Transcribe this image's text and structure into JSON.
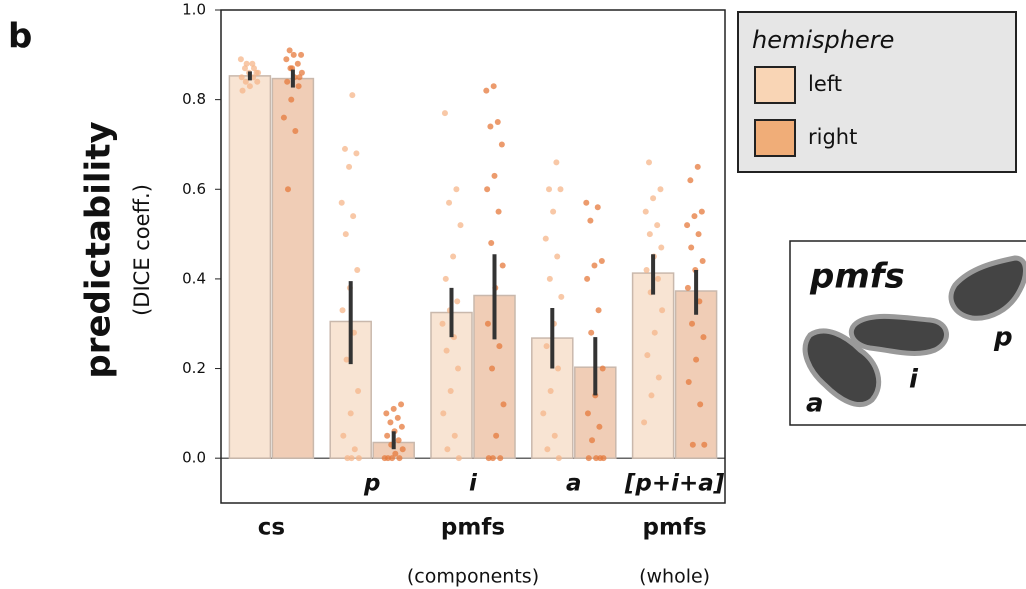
{
  "panel_label": "b",
  "chart_data": {
    "type": "bar",
    "ylabel": "predictability",
    "ylabel_sub": "(DICE coeff.)",
    "categories": [
      null,
      "p",
      "i",
      "a",
      "[p+i+a]"
    ],
    "group_labels": [
      {
        "label": "cs"
      },
      {
        "label": "pmfs",
        "sublabel": "(components)"
      },
      {
        "label": "pmfs",
        "sublabel": "(whole)"
      }
    ],
    "ylim": [
      -0.1,
      1.0
    ],
    "yticks": [
      {
        "value": 0,
        "label": "0.0"
      },
      0.2,
      0.4,
      0.6,
      0.8,
      {
        "value": 1,
        "label": "1.0"
      }
    ],
    "legend": {
      "title": "hemisphere",
      "position": "outside upper right"
    },
    "series": [
      {
        "name": "left",
        "color": "#f9d5b5",
        "bar_color": "#f8e4d3",
        "point_color": "#f6b68a",
        "values": [
          0.853,
          0.305,
          0.325,
          0.268,
          0.413
        ],
        "ci_low": [
          0.843,
          0.21,
          0.27,
          0.2,
          0.365
        ],
        "ci_high": [
          0.863,
          0.395,
          0.38,
          0.335,
          0.455
        ],
        "points": [
          [
            0.89,
            0.88,
            0.87,
            0.86,
            0.86,
            0.85,
            0.85,
            0.84,
            0.84,
            0.83,
            0.82,
            0.87,
            0.88,
            0.86
          ],
          [
            0.81,
            0.69,
            0.68,
            0.65,
            0.57,
            0.54,
            0.5,
            0.42,
            0.38,
            0.33,
            0.28,
            0.22,
            0.15,
            0.1,
            0.05,
            0.02,
            0,
            0,
            0
          ],
          [
            0.77,
            0.6,
            0.57,
            0.52,
            0.45,
            0.4,
            0.35,
            0.33,
            0.3,
            0.27,
            0.24,
            0.2,
            0.15,
            0.1,
            0.05,
            0.02,
            0
          ],
          [
            0.66,
            0.6,
            0.6,
            0.55,
            0.49,
            0.45,
            0.4,
            0.36,
            0.3,
            0.25,
            0.2,
            0.15,
            0.1,
            0.05,
            0.02,
            0
          ],
          [
            0.66,
            0.6,
            0.58,
            0.55,
            0.52,
            0.5,
            0.47,
            0.45,
            0.42,
            0.4,
            0.37,
            0.33,
            0.28,
            0.23,
            0.18,
            0.14,
            0.08
          ]
        ]
      },
      {
        "name": "right",
        "color": "#f0ad78",
        "bar_color": "#f0cdb6",
        "point_color": "#e6793c",
        "values": [
          0.847,
          0.035,
          0.363,
          0.203,
          0.373
        ],
        "ci_low": [
          0.827,
          0.02,
          0.265,
          0.14,
          0.32
        ],
        "ci_high": [
          0.867,
          0.06,
          0.455,
          0.27,
          0.42
        ],
        "points": [
          [
            0.91,
            0.9,
            0.9,
            0.89,
            0.88,
            0.87,
            0.86,
            0.85,
            0.84,
            0.83,
            0.8,
            0.76,
            0.73,
            0.6,
            0.85,
            0.87
          ],
          [
            0.12,
            0.11,
            0.1,
            0.09,
            0.08,
            0.07,
            0.06,
            0.05,
            0.04,
            0.03,
            0.02,
            0.01,
            0,
            0,
            0,
            0
          ],
          [
            0.83,
            0.82,
            0.75,
            0.74,
            0.7,
            0.63,
            0.6,
            0.55,
            0.48,
            0.43,
            0.38,
            0.3,
            0.25,
            0.2,
            0.12,
            0.05,
            0,
            0,
            0
          ],
          [
            0.57,
            0.56,
            0.53,
            0.44,
            0.43,
            0.4,
            0.33,
            0.28,
            0.2,
            0.14,
            0.1,
            0.07,
            0.04,
            0,
            0,
            0,
            0
          ],
          [
            0.65,
            0.62,
            0.55,
            0.54,
            0.52,
            0.5,
            0.47,
            0.44,
            0.42,
            0.38,
            0.35,
            0.3,
            0.27,
            0.22,
            0.17,
            0.12,
            0.03,
            0.03
          ]
        ]
      }
    ]
  },
  "inset": {
    "title": "pmfs",
    "labels": [
      "a",
      "i",
      "p"
    ]
  }
}
